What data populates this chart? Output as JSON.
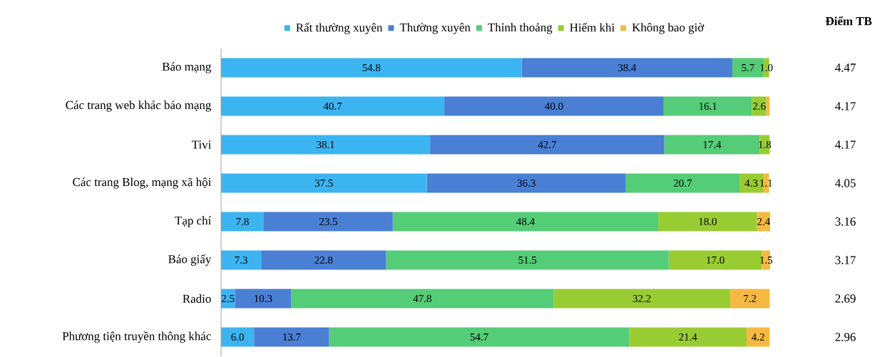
{
  "chart_data": {
    "type": "bar",
    "orientation": "horizontal",
    "stacked": true,
    "legend": "top",
    "categories": [
      "Báo mạng",
      "Các trang web khác báo mạng",
      "Tivi",
      "Các trang Blog, mạng xã hội",
      "Tạp chí",
      "Báo giấy",
      "Radio",
      "Phương tiện truyền thông khác"
    ],
    "series": [
      {
        "name": "Rất thường xuyên",
        "color": "#3cb4f0",
        "values": [
          54.8,
          40.7,
          38.1,
          37.5,
          7.8,
          7.3,
          2.5,
          6.0
        ],
        "value_labels": [
          "54.8",
          "40.7",
          "38.1",
          "37.5",
          "7.8",
          "7.3",
          "2.5",
          "6.0"
        ]
      },
      {
        "name": "Thường xuyên",
        "color": "#4a7fd4",
        "values": [
          38.4,
          40.0,
          42.7,
          36.3,
          23.5,
          22.8,
          10.3,
          13.7
        ],
        "value_labels": [
          "38.4",
          "40.0",
          "42.7",
          "36.3",
          "23.5",
          "22.8",
          "10.3",
          "13.7"
        ]
      },
      {
        "name": "Thỉnh thoảng",
        "color": "#55cc77",
        "values": [
          5.7,
          16.1,
          17.4,
          20.7,
          48.4,
          51.5,
          47.8,
          54.7
        ],
        "value_labels": [
          "5.7",
          "16.1",
          "17.4",
          "20.7",
          "48.4",
          "51.5",
          "47.8",
          "54.7"
        ]
      },
      {
        "name": "Hiếm khi",
        "color": "#99cc33",
        "values": [
          1.0,
          2.6,
          1.8,
          4.3,
          18.0,
          17.0,
          32.2,
          21.4
        ],
        "value_labels": [
          "1.0",
          "2.6",
          "1.8",
          "4.3",
          "18.0",
          "17.0",
          "32.2",
          "21.4"
        ]
      },
      {
        "name": "Không bao giờ",
        "color": "#f5b942",
        "values": [
          null,
          0.6,
          null,
          1.1,
          2.4,
          1.5,
          7.2,
          4.2
        ],
        "value_labels": [
          null,
          null,
          null,
          "1.1",
          "2.4",
          "1.5",
          "7.2",
          "4.2"
        ]
      }
    ],
    "annotations": [
      "Điểm TB",
      "4.47",
      "4.17",
      "4.17",
      "4.05",
      "3.16",
      "3.17",
      "2.69",
      "2.96"
    ]
  }
}
